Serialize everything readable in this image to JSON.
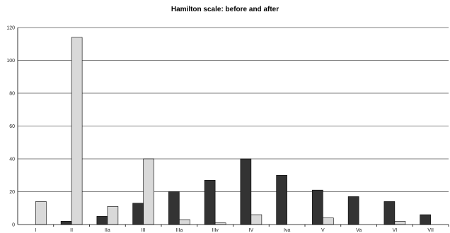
{
  "chart_data": {
    "type": "bar",
    "title": "Hamilton scale: before and after",
    "categories": [
      "I",
      "II",
      "IIa",
      "III",
      "IIIa",
      "IIIv",
      "IV",
      "Iva",
      "V",
      "Va",
      "VI",
      "VII"
    ],
    "series": [
      {
        "values": [
          0,
          2,
          5,
          13,
          20,
          27,
          40,
          30,
          21,
          17,
          14,
          6
        ],
        "color": "#333333"
      },
      {
        "values": [
          14,
          114,
          11,
          40,
          3,
          1,
          6,
          0,
          4,
          0,
          2,
          0
        ],
        "color": "#d9d9d9"
      }
    ],
    "ylim": [
      0,
      120
    ],
    "yticks": [
      0,
      20,
      40,
      60,
      80,
      100,
      120
    ],
    "grid": true,
    "legend": "none"
  }
}
